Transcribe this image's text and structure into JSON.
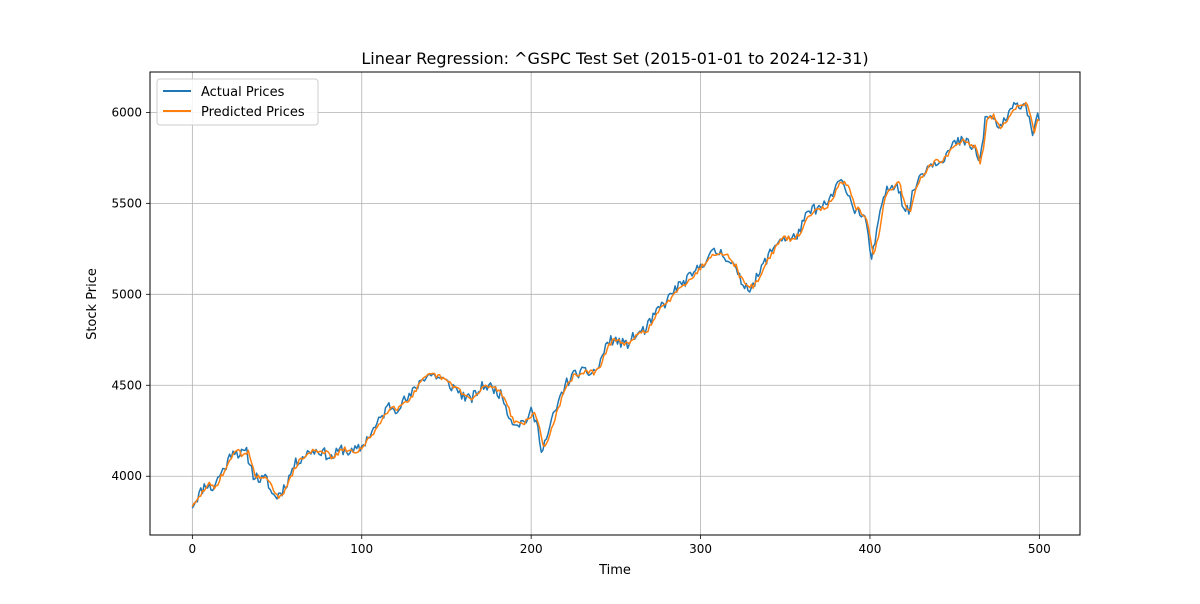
{
  "chart_data": {
    "type": "line",
    "title": "Linear Regression: ^GSPC Test Set (2015-01-01 to 2024-12-31)",
    "xlabel": "Time",
    "ylabel": "Stock Price",
    "xlim": [
      -25,
      524
    ],
    "ylim": [
      3677,
      6222
    ],
    "xticks": [
      0,
      100,
      200,
      300,
      400,
      500
    ],
    "yticks": [
      4000,
      4500,
      5000,
      5500,
      6000
    ],
    "grid": true,
    "legend_position": "top-left",
    "colors": {
      "actual": "#1f77b4",
      "predicted": "#ff7f0e"
    },
    "anchors": [
      [
        0,
        3840
      ],
      [
        3,
        3885
      ],
      [
        8,
        3960
      ],
      [
        12,
        3930
      ],
      [
        16,
        4005
      ],
      [
        20,
        4060
      ],
      [
        24,
        4150
      ],
      [
        28,
        4120
      ],
      [
        32,
        4130
      ],
      [
        36,
        4010
      ],
      [
        40,
        3980
      ],
      [
        44,
        3985
      ],
      [
        47,
        3900
      ],
      [
        50,
        3890
      ],
      [
        53,
        3920
      ],
      [
        56,
        3970
      ],
      [
        60,
        4060
      ],
      [
        64,
        4100
      ],
      [
        70,
        4140
      ],
      [
        76,
        4140
      ],
      [
        82,
        4100
      ],
      [
        88,
        4150
      ],
      [
        94,
        4130
      ],
      [
        100,
        4160
      ],
      [
        104,
        4220
      ],
      [
        108,
        4270
      ],
      [
        112,
        4330
      ],
      [
        116,
        4390
      ],
      [
        120,
        4370
      ],
      [
        124,
        4410
      ],
      [
        128,
        4430
      ],
      [
        132,
        4490
      ],
      [
        136,
        4540
      ],
      [
        140,
        4560
      ],
      [
        144,
        4550
      ],
      [
        148,
        4530
      ],
      [
        152,
        4500
      ],
      [
        156,
        4480
      ],
      [
        160,
        4440
      ],
      [
        164,
        4420
      ],
      [
        168,
        4460
      ],
      [
        172,
        4500
      ],
      [
        176,
        4490
      ],
      [
        180,
        4470
      ],
      [
        184,
        4420
      ],
      [
        188,
        4310
      ],
      [
        192,
        4290
      ],
      [
        196,
        4300
      ],
      [
        200,
        4350
      ],
      [
        203,
        4300
      ],
      [
        206,
        4160
      ],
      [
        209,
        4200
      ],
      [
        212,
        4300
      ],
      [
        216,
        4400
      ],
      [
        220,
        4500
      ],
      [
        224,
        4550
      ],
      [
        228,
        4570
      ],
      [
        232,
        4570
      ],
      [
        236,
        4570
      ],
      [
        240,
        4600
      ],
      [
        244,
        4720
      ],
      [
        248,
        4750
      ],
      [
        252,
        4740
      ],
      [
        256,
        4720
      ],
      [
        260,
        4760
      ],
      [
        264,
        4790
      ],
      [
        268,
        4810
      ],
      [
        272,
        4870
      ],
      [
        276,
        4930
      ],
      [
        280,
        4960
      ],
      [
        284,
        5020
      ],
      [
        288,
        5050
      ],
      [
        292,
        5080
      ],
      [
        296,
        5110
      ],
      [
        300,
        5160
      ],
      [
        304,
        5200
      ],
      [
        308,
        5230
      ],
      [
        312,
        5230
      ],
      [
        316,
        5200
      ],
      [
        320,
        5150
      ],
      [
        322,
        5100
      ],
      [
        326,
        5050
      ],
      [
        330,
        5040
      ],
      [
        334,
        5100
      ],
      [
        338,
        5180
      ],
      [
        342,
        5240
      ],
      [
        346,
        5300
      ],
      [
        350,
        5310
      ],
      [
        354,
        5300
      ],
      [
        358,
        5340
      ],
      [
        362,
        5420
      ],
      [
        366,
        5470
      ],
      [
        370,
        5470
      ],
      [
        374,
        5490
      ],
      [
        378,
        5550
      ],
      [
        382,
        5620
      ],
      [
        386,
        5590
      ],
      [
        390,
        5480
      ],
      [
        394,
        5450
      ],
      [
        397,
        5420
      ],
      [
        399,
        5300
      ],
      [
        401,
        5200
      ],
      [
        404,
        5330
      ],
      [
        408,
        5540
      ],
      [
        412,
        5590
      ],
      [
        416,
        5620
      ],
      [
        420,
        5480
      ],
      [
        423,
        5460
      ],
      [
        426,
        5580
      ],
      [
        430,
        5660
      ],
      [
        434,
        5700
      ],
      [
        438,
        5730
      ],
      [
        442,
        5740
      ],
      [
        446,
        5780
      ],
      [
        450,
        5830
      ],
      [
        454,
        5840
      ],
      [
        458,
        5830
      ],
      [
        462,
        5800
      ],
      [
        464,
        5720
      ],
      [
        466,
        5800
      ],
      [
        468,
        5960
      ],
      [
        472,
        5980
      ],
      [
        476,
        5920
      ],
      [
        480,
        5950
      ],
      [
        484,
        6020
      ],
      [
        488,
        6050
      ],
      [
        492,
        6040
      ],
      [
        494,
        5980
      ],
      [
        496,
        5890
      ],
      [
        498,
        5960
      ],
      [
        500,
        5980
      ]
    ],
    "series": [
      {
        "name": "Actual Prices",
        "noise_seed": 11,
        "noise_amp": 30
      },
      {
        "name": "Predicted Prices",
        "noise_seed": 29,
        "noise_amp": 14,
        "lag": 1.2
      }
    ]
  }
}
